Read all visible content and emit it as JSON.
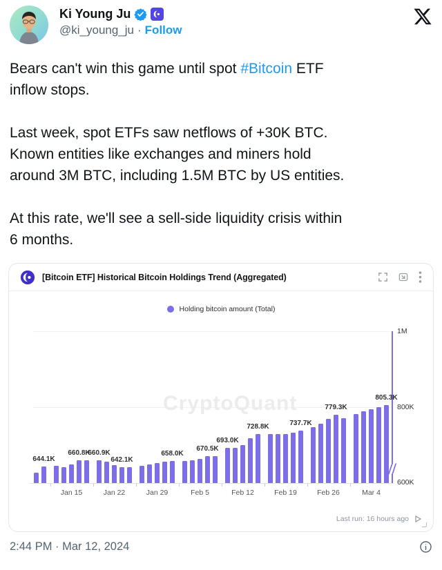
{
  "colors": {
    "accent": "#7b6ee6",
    "link_blue": "#1d9bf0",
    "logo_purple": "#4130c8",
    "badge_purple": "#5445e6"
  },
  "header": {
    "display_name": "Ki Young Ju",
    "handle": "@ki_young_ju",
    "dot": "·",
    "follow_label": "Follow"
  },
  "post": {
    "paragraphs": [
      {
        "lines": [
          [
            {
              "t": "Bears can't win this game until spot "
            },
            {
              "t": "#Bitcoin",
              "link": true
            },
            {
              "t": " ETF"
            }
          ],
          [
            {
              "t": "inflow stops."
            }
          ]
        ]
      },
      {
        "lines": [
          [
            {
              "t": "Last week, spot ETFs saw netflows of +30K BTC."
            }
          ],
          [
            {
              "t": "Known entities like exchanges and miners hold"
            }
          ],
          [
            {
              "t": "around 3M BTC, including 1.5M BTC by US entities."
            }
          ]
        ]
      },
      {
        "lines": [
          [
            {
              "t": "At this rate, we'll see a sell-side liquidity crisis within"
            }
          ],
          [
            {
              "t": "6 months."
            }
          ]
        ]
      }
    ]
  },
  "chart_card": {
    "title": "[Bitcoin ETF] Historical Bitcoin Holdings Trend (Aggregated)",
    "legend_label": "Holding bitcoin amount (Total)",
    "watermark": "CryptoQuant",
    "last_run": "Last run: 16 hours ago"
  },
  "chart_data": {
    "type": "bar",
    "title": "[Bitcoin ETF] Historical Bitcoin Holdings Trend (Aggregated)",
    "series_name": "Holding bitcoin amount (Total)",
    "unit": "BTC (thousands)",
    "ylim": [
      600000,
      1000000
    ],
    "y_tick_labels": [
      "1M",
      "800K",
      "600K"
    ],
    "y_axis_side": "right",
    "y_axis_break_at_bottom": true,
    "grid": "horizontal-light",
    "legend_position": "top-center",
    "bar_color": "#7b6ee6",
    "x_tick_labels": [
      "Jan 15",
      "Jan 22",
      "Jan 29",
      "Feb 5",
      "Feb 12",
      "Feb 19",
      "Feb 26",
      "Mar 4"
    ],
    "groups": [
      {
        "x_label": null,
        "bars": [
          {
            "value_k": 628
          },
          {
            "value_k": 644.1,
            "label": "644.1K"
          }
        ]
      },
      {
        "x_label": "Jan 15",
        "bars": [
          {
            "value_k": 645
          },
          {
            "value_k": 642
          },
          {
            "value_k": 650
          },
          {
            "value_k": 660.8,
            "label": "660.8K"
          },
          {
            "value_k": 660.5
          }
        ]
      },
      {
        "x_label": "Jan 22",
        "bars": [
          {
            "value_k": 660.9,
            "label": "660.9K"
          },
          {
            "value_k": 657
          },
          {
            "value_k": 648
          },
          {
            "value_k": 642.1,
            "label": "642.1K"
          },
          {
            "value_k": 642.5
          }
        ]
      },
      {
        "x_label": "Jan 29",
        "bars": [
          {
            "value_k": 645
          },
          {
            "value_k": 650
          },
          {
            "value_k": 653
          },
          {
            "value_k": 656
          },
          {
            "value_k": 658.0,
            "label": "658.0K"
          }
        ]
      },
      {
        "x_label": "Feb 5",
        "bars": [
          {
            "value_k": 659
          },
          {
            "value_k": 660
          },
          {
            "value_k": 663
          },
          {
            "value_k": 670.5,
            "label": "670.5K"
          },
          {
            "value_k": 670.2
          }
        ]
      },
      {
        "x_label": "Feb 12",
        "bars": [
          {
            "value_k": 693.0,
            "label": "693.0K"
          },
          {
            "value_k": 692
          },
          {
            "value_k": 700
          },
          {
            "value_k": 718
          },
          {
            "value_k": 728.8,
            "label": "728.8K"
          }
        ]
      },
      {
        "x_label": "Feb 19",
        "bars": [
          {
            "value_k": 729
          },
          {
            "value_k": 730
          },
          {
            "value_k": 730
          },
          {
            "value_k": 733
          },
          {
            "value_k": 737.7,
            "label": "737.7K"
          }
        ]
      },
      {
        "x_label": "Feb 26",
        "bars": [
          {
            "value_k": 748
          },
          {
            "value_k": 757
          },
          {
            "value_k": 769
          },
          {
            "value_k": 779.3,
            "label": "779.3K"
          },
          {
            "value_k": 771
          }
        ]
      },
      {
        "x_label": "Mar 4",
        "bars": [
          {
            "value_k": 781
          },
          {
            "value_k": 790
          },
          {
            "value_k": 795
          },
          {
            "value_k": 800
          },
          {
            "value_k": 805.3,
            "label": "805.3K"
          }
        ]
      }
    ]
  },
  "footer": {
    "timestamp": "2:44 PM · Mar 12, 2024"
  }
}
